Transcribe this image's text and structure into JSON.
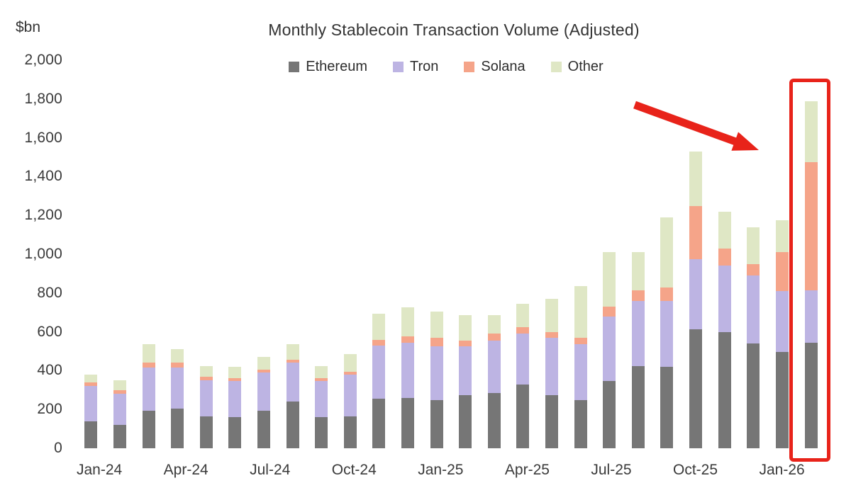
{
  "chart_data": {
    "type": "bar",
    "stacked": true,
    "title": "Monthly Stablecoin Transaction Volume (Adjusted)",
    "ylabel": "$bn",
    "ylim": [
      0,
      2000
    ],
    "y_tick_step": 200,
    "y_tick_labels": [
      "0",
      "200",
      "400",
      "600",
      "800",
      "1,000",
      "1,200",
      "1,400",
      "1,600",
      "1,800",
      "2,000"
    ],
    "x_tick_every": 3,
    "x_tick_labels": [
      "Jan-24",
      "Apr-24",
      "Jul-24",
      "Oct-24",
      "Jan-25",
      "Apr-25",
      "Jul-25",
      "Oct-25",
      "Jan-26"
    ],
    "categories": [
      "Jan-24",
      "Feb-24",
      "Mar-24",
      "Apr-24",
      "May-24",
      "Jun-24",
      "Jul-24",
      "Aug-24",
      "Sep-24",
      "Oct-24",
      "Nov-24",
      "Dec-24",
      "Jan-25",
      "Feb-25",
      "Mar-25",
      "Apr-25",
      "May-25",
      "Jun-25",
      "Jul-25",
      "Aug-25",
      "Sep-25",
      "Oct-25",
      "Nov-25",
      "Dec-25",
      "Jan-26",
      "Feb-26"
    ],
    "series": [
      {
        "name": "Ethereum",
        "color": "#767676",
        "values": [
          140,
          120,
          195,
          205,
          165,
          160,
          195,
          240,
          160,
          165,
          255,
          260,
          250,
          275,
          285,
          330,
          275,
          250,
          345,
          425,
          420,
          615,
          600,
          540,
          495,
          545
        ]
      },
      {
        "name": "Tron",
        "color": "#bdb4e3",
        "values": [
          180,
          160,
          220,
          210,
          185,
          185,
          195,
          200,
          185,
          215,
          275,
          285,
          275,
          250,
          270,
          260,
          295,
          285,
          335,
          335,
          340,
          360,
          340,
          350,
          315,
          270
        ]
      },
      {
        "name": "Solana",
        "color": "#f5a489",
        "values": [
          20,
          20,
          25,
          25,
          20,
          15,
          15,
          15,
          15,
          15,
          30,
          30,
          45,
          30,
          35,
          35,
          30,
          35,
          50,
          55,
          70,
          275,
          90,
          60,
          200,
          660
        ]
      },
      {
        "name": "Other",
        "color": "#dfe7c5",
        "values": [
          40,
          50,
          95,
          70,
          55,
          60,
          65,
          80,
          65,
          90,
          135,
          150,
          135,
          130,
          95,
          120,
          170,
          265,
          280,
          195,
          360,
          280,
          190,
          190,
          165,
          315
        ]
      }
    ],
    "legend_position": "top",
    "gridlines": false,
    "annotations": {
      "highlight_box": "red rectangle around final bar (Feb-26)",
      "arrow": "red arrow pointing down-right at the highlighted final bar"
    },
    "accent_color": "#e8231a"
  }
}
